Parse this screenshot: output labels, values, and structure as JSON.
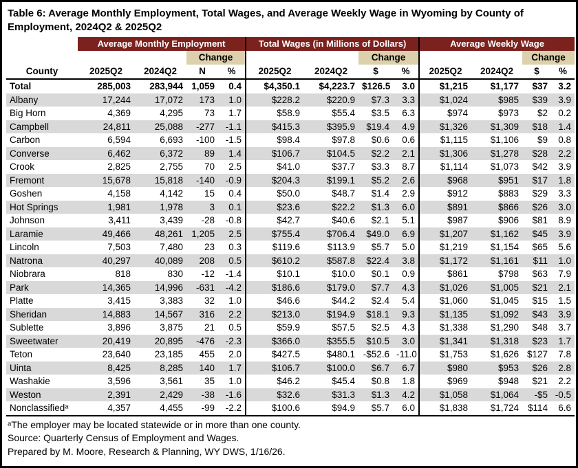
{
  "page_title": "Table 6: Average Monthly Employment, Total Wages, and Average Weekly Wage in Wyoming by County of Employment, 2024Q2 & 2025Q2",
  "colors": {
    "header_maroon": "#7B211E",
    "change_tan": "#DDD0AC",
    "row_stripe": "#D9D9D9",
    "text": "#000000",
    "border": "#000000"
  },
  "table": {
    "county_header": "County",
    "groups": [
      {
        "label": "Average Monthly Employment",
        "change_label": "Change",
        "cols": [
          "2025Q2",
          "2024Q2",
          "N",
          "%"
        ]
      },
      {
        "label": "Total Wages (in Millions of Dollars)",
        "change_label": "Change",
        "cols": [
          "2025Q2",
          "2024Q2",
          "$",
          "%"
        ]
      },
      {
        "label": "Average Weekly Wage",
        "change_label": "Change",
        "cols": [
          "2025Q2",
          "2024Q2",
          "$",
          "%"
        ]
      }
    ],
    "rows": [
      [
        "Total",
        "285,003",
        "283,944",
        "1,059",
        "0.4",
        "$4,350.1",
        "$4,223.7",
        "$126.5",
        "3.0",
        "$1,215",
        "$1,177",
        "$37",
        "3.2"
      ],
      [
        "Albany",
        "17,244",
        "17,072",
        "173",
        "1.0",
        "$228.2",
        "$220.9",
        "$7.3",
        "3.3",
        "$1,024",
        "$985",
        "$39",
        "3.9"
      ],
      [
        "Big Horn",
        "4,369",
        "4,295",
        "73",
        "1.7",
        "$58.9",
        "$55.4",
        "$3.5",
        "6.3",
        "$974",
        "$973",
        "$2",
        "0.2"
      ],
      [
        "Campbell",
        "24,811",
        "25,088",
        "-277",
        "-1.1",
        "$415.3",
        "$395.9",
        "$19.4",
        "4.9",
        "$1,326",
        "$1,309",
        "$18",
        "1.4"
      ],
      [
        "Carbon",
        "6,594",
        "6,693",
        "-100",
        "-1.5",
        "$98.4",
        "$97.8",
        "$0.6",
        "0.6",
        "$1,115",
        "$1,106",
        "$9",
        "0.8"
      ],
      [
        "Converse",
        "6,462",
        "6,372",
        "89",
        "1.4",
        "$106.7",
        "$104.5",
        "$2.2",
        "2.1",
        "$1,306",
        "$1,278",
        "$28",
        "2.2"
      ],
      [
        "Crook",
        "2,825",
        "2,755",
        "70",
        "2.5",
        "$41.0",
        "$37.7",
        "$3.3",
        "8.7",
        "$1,114",
        "$1,073",
        "$42",
        "3.9"
      ],
      [
        "Fremont",
        "15,678",
        "15,818",
        "-140",
        "-0.9",
        "$204.3",
        "$199.1",
        "$5.2",
        "2.6",
        "$968",
        "$951",
        "$17",
        "1.8"
      ],
      [
        "Goshen",
        "4,158",
        "4,142",
        "15",
        "0.4",
        "$50.0",
        "$48.7",
        "$1.4",
        "2.9",
        "$912",
        "$883",
        "$29",
        "3.3"
      ],
      [
        "Hot Springs",
        "1,981",
        "1,978",
        "3",
        "0.1",
        "$23.6",
        "$22.2",
        "$1.3",
        "6.0",
        "$891",
        "$866",
        "$26",
        "3.0"
      ],
      [
        "Johnson",
        "3,411",
        "3,439",
        "-28",
        "-0.8",
        "$42.7",
        "$40.6",
        "$2.1",
        "5.1",
        "$987",
        "$906",
        "$81",
        "8.9"
      ],
      [
        "Laramie",
        "49,466",
        "48,261",
        "1,205",
        "2.5",
        "$755.4",
        "$706.4",
        "$49.0",
        "6.9",
        "$1,207",
        "$1,162",
        "$45",
        "3.9"
      ],
      [
        "Lincoln",
        "7,503",
        "7,480",
        "23",
        "0.3",
        "$119.6",
        "$113.9",
        "$5.7",
        "5.0",
        "$1,219",
        "$1,154",
        "$65",
        "5.6"
      ],
      [
        "Natrona",
        "40,297",
        "40,089",
        "208",
        "0.5",
        "$610.2",
        "$587.8",
        "$22.4",
        "3.8",
        "$1,172",
        "$1,161",
        "$11",
        "1.0"
      ],
      [
        "Niobrara",
        "818",
        "830",
        "-12",
        "-1.4",
        "$10.1",
        "$10.0",
        "$0.1",
        "0.9",
        "$861",
        "$798",
        "$63",
        "7.9"
      ],
      [
        "Park",
        "14,365",
        "14,996",
        "-631",
        "-4.2",
        "$186.6",
        "$179.0",
        "$7.7",
        "4.3",
        "$1,026",
        "$1,005",
        "$21",
        "2.1"
      ],
      [
        "Platte",
        "3,415",
        "3,383",
        "32",
        "1.0",
        "$46.6",
        "$44.2",
        "$2.4",
        "5.4",
        "$1,060",
        "$1,045",
        "$15",
        "1.5"
      ],
      [
        "Sheridan",
        "14,883",
        "14,567",
        "316",
        "2.2",
        "$213.0",
        "$194.9",
        "$18.1",
        "9.3",
        "$1,135",
        "$1,092",
        "$43",
        "3.9"
      ],
      [
        "Sublette",
        "3,896",
        "3,875",
        "21",
        "0.5",
        "$59.9",
        "$57.5",
        "$2.5",
        "4.3",
        "$1,338",
        "$1,290",
        "$48",
        "3.7"
      ],
      [
        "Sweetwater",
        "20,419",
        "20,895",
        "-476",
        "-2.3",
        "$366.0",
        "$355.5",
        "$10.5",
        "3.0",
        "$1,341",
        "$1,318",
        "$23",
        "1.7"
      ],
      [
        "Teton",
        "23,640",
        "23,185",
        "455",
        "2.0",
        "$427.5",
        "$480.1",
        "-$52.6",
        "-11.0",
        "$1,753",
        "$1,626",
        "$127",
        "7.8"
      ],
      [
        "Uinta",
        "8,425",
        "8,285",
        "140",
        "1.7",
        "$106.7",
        "$100.0",
        "$6.7",
        "6.7",
        "$980",
        "$953",
        "$26",
        "2.8"
      ],
      [
        "Washakie",
        "3,596",
        "3,561",
        "35",
        "1.0",
        "$46.2",
        "$45.4",
        "$0.8",
        "1.8",
        "$969",
        "$948",
        "$21",
        "2.2"
      ],
      [
        "Weston",
        "2,391",
        "2,429",
        "-38",
        "-1.6",
        "$32.6",
        "$31.3",
        "$1.3",
        "4.2",
        "$1,058",
        "$1,064",
        "-$5",
        "-0.5"
      ],
      [
        "Nonclassifiedᵃ",
        "4,357",
        "4,455",
        "-99",
        "-2.2",
        "$100.6",
        "$94.9",
        "$5.7",
        "6.0",
        "$1,838",
        "$1,724",
        "$114",
        "6.6"
      ]
    ]
  },
  "footnotes": [
    "ᵃThe employer may be located statewide or in more than one county.",
    "Source: Quarterly Census of Employment and Wages.",
    "Prepared by M. Moore, Research & Planning, WY DWS, 1/16/26."
  ]
}
